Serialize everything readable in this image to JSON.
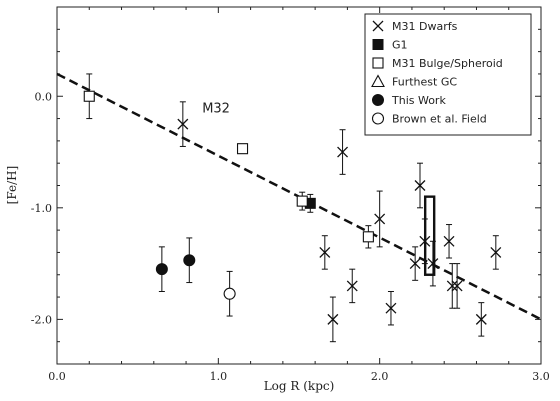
{
  "chart_data": {
    "type": "scatter",
    "xlabel": "Log R (kpc)",
    "ylabel": "[Fe/H]",
    "xlim": [
      0.0,
      3.0
    ],
    "ylim": [
      -2.4,
      0.8
    ],
    "x_ticks": [
      {
        "value": 0.0,
        "label": "0.0"
      },
      {
        "value": 1.0,
        "label": "1.0"
      },
      {
        "value": 2.0,
        "label": "2.0"
      },
      {
        "value": 3.0,
        "label": "3.0"
      }
    ],
    "y_ticks": [
      {
        "value": 0.0,
        "label": "0.0"
      },
      {
        "value": -1.0,
        "label": "-1.0"
      },
      {
        "value": -2.0,
        "label": "-2.0"
      }
    ],
    "legend_position": "top-right",
    "legend": [
      {
        "label": "M31 Dwarfs",
        "marker": "cross"
      },
      {
        "label": "G1",
        "marker": "filled-square"
      },
      {
        "label": "M31 Bulge/Spheroid",
        "marker": "open-square"
      },
      {
        "label": "Furthest GC",
        "marker": "open-triangle"
      },
      {
        "label": "This Work",
        "marker": "filled-circle"
      },
      {
        "label": "Brown et al. Field",
        "marker": "open-circle"
      }
    ],
    "fit_line": {
      "style": "dashed",
      "x": [
        0.0,
        3.0
      ],
      "y": [
        0.2,
        -2.0
      ]
    },
    "annotations": [
      {
        "text": "M32",
        "x": 0.9,
        "y": -0.1
      }
    ],
    "series": [
      {
        "name": "M31 Dwarfs",
        "marker": "cross",
        "points": [
          {
            "x": 0.78,
            "y": -0.25,
            "err": 0.2
          },
          {
            "x": 1.66,
            "y": -1.4,
            "err": 0.15
          },
          {
            "x": 1.71,
            "y": -2.0,
            "err": 0.2
          },
          {
            "x": 1.77,
            "y": -0.5,
            "err": 0.2
          },
          {
            "x": 1.83,
            "y": -1.7,
            "err": 0.15
          },
          {
            "x": 2.0,
            "y": -1.1,
            "err": 0.25
          },
          {
            "x": 2.07,
            "y": -1.9,
            "err": 0.15
          },
          {
            "x": 2.22,
            "y": -1.5,
            "err": 0.15
          },
          {
            "x": 2.25,
            "y": -0.8,
            "err": 0.2
          },
          {
            "x": 2.28,
            "y": -1.3,
            "err": 0.2
          },
          {
            "x": 2.33,
            "y": -1.5,
            "err": 0.2
          },
          {
            "x": 2.43,
            "y": -1.3,
            "err": 0.15
          },
          {
            "x": 2.45,
            "y": -1.7,
            "err": 0.2
          },
          {
            "x": 2.48,
            "y": -1.7,
            "err": 0.2
          },
          {
            "x": 2.63,
            "y": -2.0,
            "err": 0.15
          },
          {
            "x": 2.72,
            "y": -1.4,
            "err": 0.15
          }
        ]
      },
      {
        "name": "G1",
        "marker": "filled-square",
        "points": [
          {
            "x": 1.57,
            "y": -0.96,
            "err": 0.08
          }
        ]
      },
      {
        "name": "M31 Bulge/Spheroid",
        "marker": "open-square",
        "points": [
          {
            "x": 0.2,
            "y": 0.0,
            "err": 0.2
          },
          {
            "x": 1.15,
            "y": -0.47,
            "err": 0
          },
          {
            "x": 1.52,
            "y": -0.94,
            "err": 0.08
          },
          {
            "x": 1.93,
            "y": -1.26,
            "err": 0.1
          }
        ]
      },
      {
        "name": "Furthest GC",
        "marker": "open-triangle",
        "points": [],
        "range_box": {
          "x": 2.31,
          "y_min": -1.6,
          "y_max": -0.9
        }
      },
      {
        "name": "This Work",
        "marker": "filled-circle",
        "points": [
          {
            "x": 0.65,
            "y": -1.55,
            "err": 0.2
          },
          {
            "x": 0.82,
            "y": -1.47,
            "err": 0.2
          }
        ]
      },
      {
        "name": "Brown et al. Field",
        "marker": "open-circle",
        "points": [
          {
            "x": 1.07,
            "y": -1.77,
            "err": 0.2
          }
        ]
      }
    ]
  }
}
